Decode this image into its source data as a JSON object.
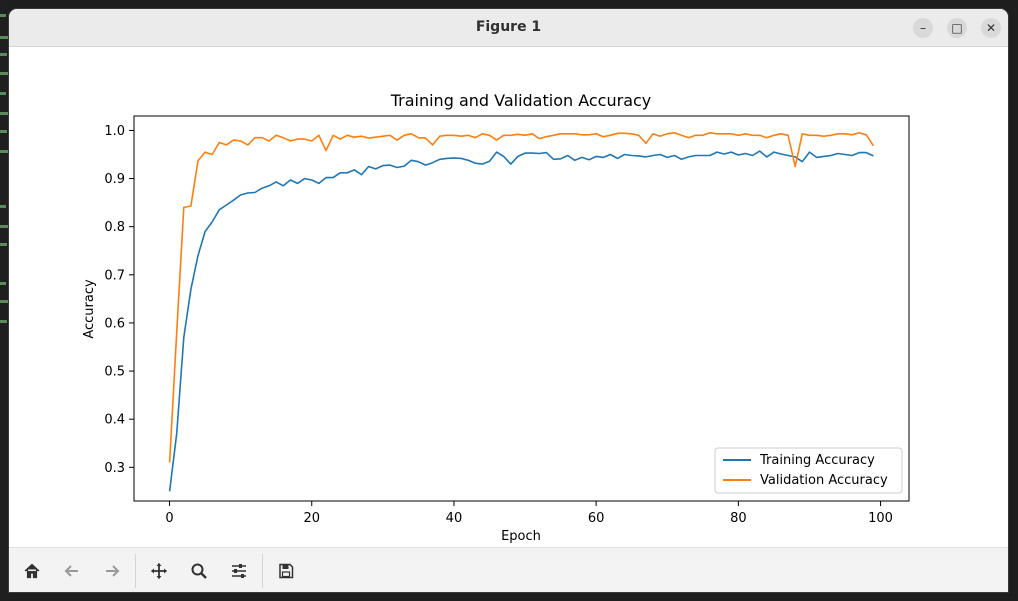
{
  "window": {
    "title": "Figure 1"
  },
  "toolbar": {
    "buttons": [
      {
        "name": "home-button",
        "icon": "home-icon"
      },
      {
        "name": "back-button",
        "icon": "arrow-left-icon"
      },
      {
        "name": "forward-button",
        "icon": "arrow-right-icon"
      },
      {
        "name": "pan-button",
        "icon": "move-icon"
      },
      {
        "name": "zoom-button",
        "icon": "magnifier-icon"
      },
      {
        "name": "configure-subplots-button",
        "icon": "sliders-icon"
      },
      {
        "name": "save-button",
        "icon": "floppy-disk-icon"
      }
    ]
  },
  "colors": {
    "train": "#1f77b4",
    "val": "#ff7f0e"
  },
  "chart_data": {
    "type": "line",
    "title": "Training and Validation Accuracy",
    "xlabel": "Epoch",
    "ylabel": "Accuracy",
    "xlim": [
      -5,
      104
    ],
    "ylim": [
      0.23,
      1.03
    ],
    "xticks": [
      0,
      20,
      40,
      60,
      80,
      100
    ],
    "yticks": [
      0.3,
      0.4,
      0.5,
      0.6,
      0.7,
      0.8,
      0.9,
      1.0
    ],
    "yticklabels": [
      "0.3",
      "0.4",
      "0.5",
      "0.6",
      "0.7",
      "0.8",
      "0.9",
      "1.0"
    ],
    "grid": false,
    "legend_position": "lower-right",
    "x": [
      0,
      1,
      2,
      3,
      4,
      5,
      6,
      7,
      8,
      9,
      10,
      11,
      12,
      13,
      14,
      15,
      16,
      17,
      18,
      19,
      20,
      21,
      22,
      23,
      24,
      25,
      26,
      27,
      28,
      29,
      30,
      31,
      32,
      33,
      34,
      35,
      36,
      37,
      38,
      39,
      40,
      41,
      42,
      43,
      44,
      45,
      46,
      47,
      48,
      49,
      50,
      51,
      52,
      53,
      54,
      55,
      56,
      57,
      58,
      59,
      60,
      61,
      62,
      63,
      64,
      65,
      66,
      67,
      68,
      69,
      70,
      71,
      72,
      73,
      74,
      75,
      76,
      77,
      78,
      79,
      80,
      81,
      82,
      83,
      84,
      85,
      86,
      87,
      88,
      89,
      90,
      91,
      92,
      93,
      94,
      95,
      96,
      97,
      98,
      99
    ],
    "series": [
      {
        "name": "Training Accuracy",
        "values": [
          0.25,
          0.37,
          0.57,
          0.67,
          0.74,
          0.79,
          0.81,
          0.835,
          0.845,
          0.855,
          0.866,
          0.87,
          0.871,
          0.88,
          0.885,
          0.893,
          0.885,
          0.897,
          0.89,
          0.9,
          0.897,
          0.89,
          0.902,
          0.902,
          0.912,
          0.912,
          0.918,
          0.908,
          0.925,
          0.92,
          0.927,
          0.928,
          0.923,
          0.926,
          0.938,
          0.935,
          0.928,
          0.933,
          0.94,
          0.942,
          0.943,
          0.942,
          0.938,
          0.932,
          0.93,
          0.936,
          0.955,
          0.946,
          0.93,
          0.946,
          0.953,
          0.953,
          0.952,
          0.954,
          0.94,
          0.941,
          0.948,
          0.938,
          0.944,
          0.939,
          0.946,
          0.944,
          0.95,
          0.942,
          0.95,
          0.948,
          0.947,
          0.945,
          0.948,
          0.95,
          0.944,
          0.948,
          0.94,
          0.945,
          0.948,
          0.948,
          0.948,
          0.955,
          0.951,
          0.955,
          0.949,
          0.952,
          0.948,
          0.957,
          0.945,
          0.955,
          0.951,
          0.948,
          0.945,
          0.935,
          0.955,
          0.944,
          0.946,
          0.948,
          0.952,
          0.95,
          0.948,
          0.954,
          0.954,
          0.947
        ]
      },
      {
        "name": "Validation Accuracy",
        "values": [
          0.31,
          0.58,
          0.84,
          0.843,
          0.937,
          0.955,
          0.95,
          0.975,
          0.97,
          0.98,
          0.978,
          0.97,
          0.985,
          0.985,
          0.978,
          0.99,
          0.985,
          0.978,
          0.982,
          0.982,
          0.978,
          0.99,
          0.958,
          0.99,
          0.982,
          0.99,
          0.986,
          0.988,
          0.984,
          0.986,
          0.988,
          0.99,
          0.98,
          0.99,
          0.993,
          0.985,
          0.984,
          0.97,
          0.988,
          0.99,
          0.99,
          0.988,
          0.99,
          0.985,
          0.993,
          0.99,
          0.98,
          0.99,
          0.99,
          0.992,
          0.99,
          0.993,
          0.983,
          0.987,
          0.99,
          0.993,
          0.993,
          0.993,
          0.991,
          0.991,
          0.993,
          0.987,
          0.99,
          0.994,
          0.994,
          0.993,
          0.99,
          0.973,
          0.993,
          0.988,
          0.993,
          0.995,
          0.99,
          0.985,
          0.99,
          0.99,
          0.995,
          0.993,
          0.993,
          0.993,
          0.99,
          0.993,
          0.99,
          0.99,
          0.985,
          0.99,
          0.993,
          0.99,
          0.925,
          0.993,
          0.99,
          0.99,
          0.988,
          0.99,
          0.993,
          0.993,
          0.991,
          0.995,
          0.991,
          0.968
        ]
      }
    ]
  }
}
